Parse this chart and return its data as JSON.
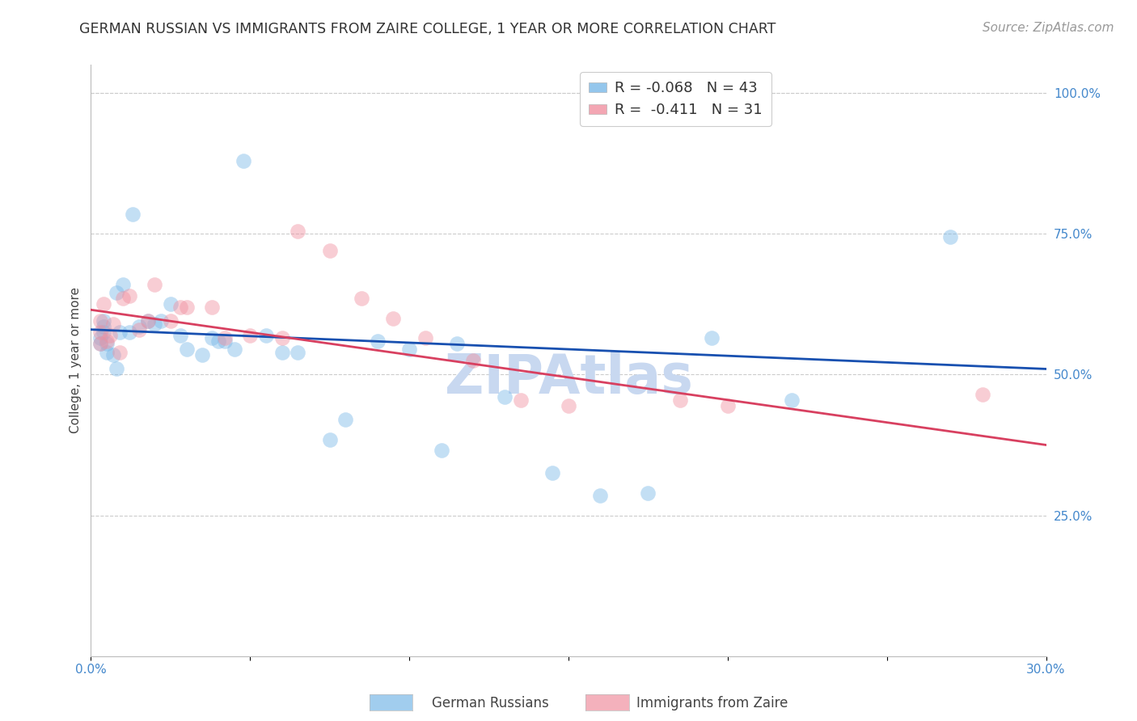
{
  "title": "GERMAN RUSSIAN VS IMMIGRANTS FROM ZAIRE COLLEGE, 1 YEAR OR MORE CORRELATION CHART",
  "source": "Source: ZipAtlas.com",
  "ylabel": "College, 1 year or more",
  "xlim": [
    0.0,
    0.3
  ],
  "ylim": [
    0.0,
    1.05
  ],
  "right_yticks": [
    0.25,
    0.5,
    0.75,
    1.0
  ],
  "right_yticklabels": [
    "25.0%",
    "50.0%",
    "75.0%",
    "100.0%"
  ],
  "xticks": [
    0.0,
    0.05,
    0.1,
    0.15,
    0.2,
    0.25,
    0.3
  ],
  "xticklabels": [
    "0.0%",
    "",
    "",
    "",
    "",
    "",
    "30.0%"
  ],
  "legend_entries": [
    {
      "label": "R = -0.068   N = 43",
      "color": "#a8c8e8"
    },
    {
      "label": "R =  -0.411   N = 31",
      "color": "#f4a8b8"
    }
  ],
  "watermark": "ZIPAtlas",
  "watermark_color": "#c8d8f0",
  "blue_scatter_x": [
    0.008,
    0.013,
    0.003,
    0.003,
    0.004,
    0.004,
    0.004,
    0.005,
    0.005,
    0.007,
    0.008,
    0.009,
    0.01,
    0.012,
    0.015,
    0.018,
    0.02,
    0.022,
    0.025,
    0.028,
    0.03,
    0.035,
    0.038,
    0.04,
    0.042,
    0.045,
    0.048,
    0.055,
    0.06,
    0.065,
    0.075,
    0.08,
    0.09,
    0.1,
    0.11,
    0.115,
    0.13,
    0.145,
    0.16,
    0.175,
    0.195,
    0.22,
    0.27
  ],
  "blue_scatter_y": [
    0.645,
    0.785,
    0.555,
    0.565,
    0.575,
    0.585,
    0.595,
    0.555,
    0.54,
    0.535,
    0.51,
    0.575,
    0.66,
    0.575,
    0.585,
    0.595,
    0.59,
    0.595,
    0.625,
    0.57,
    0.545,
    0.535,
    0.565,
    0.56,
    0.56,
    0.545,
    0.88,
    0.57,
    0.54,
    0.54,
    0.385,
    0.42,
    0.56,
    0.545,
    0.365,
    0.555,
    0.46,
    0.325,
    0.285,
    0.29,
    0.565,
    0.455,
    0.745
  ],
  "pink_scatter_x": [
    0.003,
    0.003,
    0.003,
    0.004,
    0.005,
    0.006,
    0.007,
    0.009,
    0.01,
    0.012,
    0.015,
    0.018,
    0.02,
    0.025,
    0.028,
    0.03,
    0.038,
    0.042,
    0.05,
    0.06,
    0.065,
    0.075,
    0.085,
    0.095,
    0.105,
    0.12,
    0.135,
    0.15,
    0.185,
    0.2,
    0.28
  ],
  "pink_scatter_y": [
    0.555,
    0.575,
    0.595,
    0.625,
    0.56,
    0.57,
    0.59,
    0.54,
    0.635,
    0.64,
    0.58,
    0.595,
    0.66,
    0.595,
    0.62,
    0.62,
    0.62,
    0.565,
    0.57,
    0.565,
    0.755,
    0.72,
    0.635,
    0.6,
    0.565,
    0.525,
    0.455,
    0.445,
    0.455,
    0.445,
    0.465
  ],
  "blue_line_x": [
    0.0,
    0.3
  ],
  "blue_line_y": [
    0.58,
    0.51
  ],
  "pink_line_x": [
    0.0,
    0.3
  ],
  "pink_line_y": [
    0.615,
    0.375
  ],
  "scatter_size": 180,
  "scatter_alpha": 0.45,
  "blue_color": "#7ab8e8",
  "pink_color": "#f090a0",
  "blue_line_color": "#1850b0",
  "pink_line_color": "#d84060",
  "title_fontsize": 12.5,
  "axis_label_fontsize": 11,
  "tick_fontsize": 11,
  "legend_fontsize": 13,
  "source_fontsize": 11,
  "background_color": "#ffffff",
  "grid_color": "#cccccc",
  "right_axis_color": "#4488cc",
  "tick_color": "#4488cc"
}
